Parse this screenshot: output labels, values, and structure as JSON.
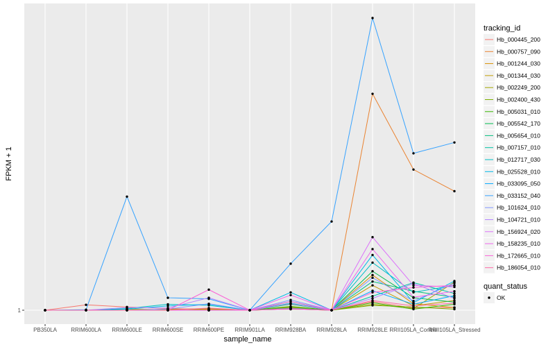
{
  "chart_data": {
    "type": "line",
    "xlabel": "sample_name",
    "ylabel": "FPKM + 1",
    "categories": [
      "PB350LA",
      "RRIM600LA",
      "RRIM600LE",
      "RRIM600SE",
      "RRIM600PE",
      "RRIM901LA",
      "RRIM928BA",
      "RRIM928LA",
      "RRIM928LE",
      "RRII105LA_Control",
      "RRII105LA_Stressed"
    ],
    "y_tick_labels": [
      {
        "value": 1,
        "label": "1"
      }
    ],
    "ylim": [
      0,
      57
    ],
    "grid": true,
    "legend": {
      "title": "tracking_id",
      "placement": "right",
      "shape_title": "quant_status",
      "shape_label": "OK"
    },
    "series": [
      {
        "name": "Hb_000445_200",
        "color": "#F8766D",
        "values": [
          1,
          2,
          1.6,
          1.3,
          1.2,
          1,
          1.4,
          1,
          2.6,
          1.4,
          1.5
        ]
      },
      {
        "name": "Hb_000757_090",
        "color": "#EA8331",
        "values": [
          1,
          1,
          1,
          1,
          1,
          1,
          1.3,
          1,
          41,
          27,
          23
        ]
      },
      {
        "name": "Hb_001244_030",
        "color": "#D89000",
        "values": [
          1,
          1,
          1,
          1,
          1,
          1,
          1.6,
          1,
          7.5,
          2.2,
          1.5
        ]
      },
      {
        "name": "Hb_001344_030",
        "color": "#C09B00",
        "values": [
          1,
          1,
          1,
          1.2,
          1.1,
          1,
          1.2,
          1,
          5.6,
          1.8,
          2.8
        ]
      },
      {
        "name": "Hb_002249_200",
        "color": "#A3A500",
        "values": [
          1,
          1,
          1.2,
          1.1,
          1.3,
          1,
          1.5,
          1,
          2.1,
          1.3,
          6.2
        ]
      },
      {
        "name": "Hb_002400_430",
        "color": "#7CAE00",
        "values": [
          1,
          1,
          1,
          1,
          1,
          1,
          1.2,
          1,
          1.9,
          1.6,
          1.2
        ]
      },
      {
        "name": "Hb_005031_010",
        "color": "#39B600",
        "values": [
          1,
          1,
          1,
          1,
          1,
          1,
          1.7,
          1,
          2.4,
          1.2,
          2.1
        ]
      },
      {
        "name": "Hb_005542_170",
        "color": "#00BB4E",
        "values": [
          1,
          1,
          1,
          1,
          1,
          1,
          2.1,
          1,
          8.2,
          3.3,
          2.5
        ]
      },
      {
        "name": "Hb_005654_010",
        "color": "#00BF7D",
        "values": [
          1,
          1,
          1,
          1,
          1,
          1,
          2.6,
          1,
          6.3,
          4.5,
          3.4
        ]
      },
      {
        "name": "Hb_007157_010",
        "color": "#00C1A3",
        "values": [
          1,
          1,
          1,
          1,
          1,
          1,
          1.4,
          1,
          3.6,
          6.1,
          4.1
        ]
      },
      {
        "name": "Hb_012717_030",
        "color": "#00BFC4",
        "values": [
          1,
          1,
          1.3,
          2.1,
          1.9,
          1,
          2.3,
          1,
          9.8,
          4.3,
          5.6
        ]
      },
      {
        "name": "Hb_025528_010",
        "color": "#00B8E7",
        "values": [
          1,
          1,
          1.2,
          1.8,
          2.1,
          1,
          4.3,
          1,
          11.2,
          2.4,
          6.4
        ]
      },
      {
        "name": "Hb_033095_050",
        "color": "#00A9FF",
        "values": [
          1,
          1,
          1,
          1,
          1,
          1,
          1.3,
          1,
          4.6,
          2.1,
          3.7
        ]
      },
      {
        "name": "Hb_033152_040",
        "color": "#35A2FF",
        "values": [
          1,
          1.1,
          22,
          3.3,
          3.1,
          1,
          9.6,
          17.4,
          55,
          30,
          32
        ]
      },
      {
        "name": "Hb_101624_010",
        "color": "#7F96FF",
        "values": [
          1,
          1,
          1,
          1.2,
          2.2,
          1,
          2.9,
          1,
          7,
          2.7,
          6
        ]
      },
      {
        "name": "Hb_104721_010",
        "color": "#B385FF",
        "values": [
          1,
          1,
          1.5,
          1.4,
          3.3,
          1,
          2.2,
          1,
          3.2,
          5.9,
          3.2
        ]
      },
      {
        "name": "Hb_156924_020",
        "color": "#DC71FA",
        "values": [
          1,
          1,
          1,
          1,
          1,
          1,
          1.2,
          1,
          14.5,
          5.6,
          5.3
        ]
      },
      {
        "name": "Hb_158235_010",
        "color": "#EF67EB",
        "values": [
          1,
          1,
          1,
          1,
          1,
          1,
          3.8,
          1,
          12.3,
          3.4,
          4.5
        ]
      },
      {
        "name": "Hb_172665_010",
        "color": "#FB61D7",
        "values": [
          1,
          1,
          1,
          1,
          4.8,
          1,
          2.6,
          1,
          4.3,
          5.2,
          5.6
        ]
      },
      {
        "name": "Hb_186054_010",
        "color": "#FF67A4",
        "values": [
          1,
          1,
          1,
          1,
          1.4,
          1,
          1.3,
          1,
          2.8,
          1.8,
          2.3
        ]
      }
    ]
  }
}
